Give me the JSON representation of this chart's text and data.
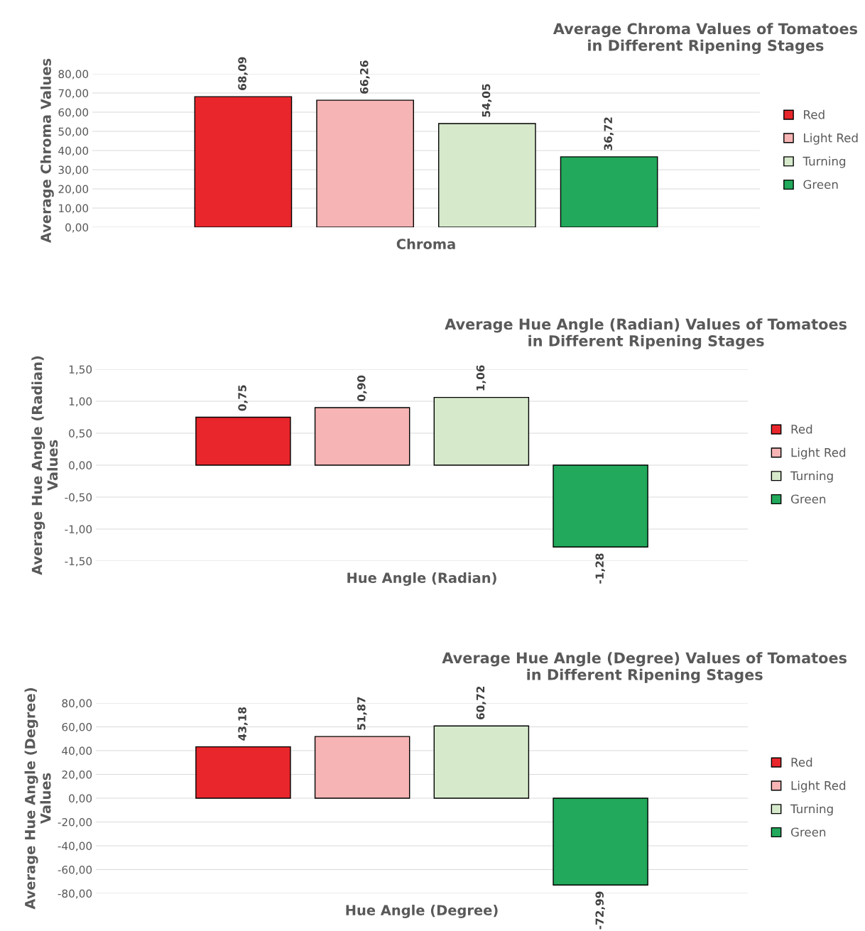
{
  "chart_data": [
    {
      "type": "bar",
      "title": "Average Chroma Values of Tomatoes\nin Different Ripening Stages",
      "xlabel": "Chroma",
      "ylabel": "Average Chroma Values",
      "categories": [
        null
      ],
      "ylim": [
        0,
        80
      ],
      "yticks": [
        {
          "value": 0,
          "label": "0,00"
        },
        {
          "value": 10,
          "label": "10,00"
        },
        {
          "value": 20,
          "label": "20,00"
        },
        {
          "value": 30,
          "label": "30,00"
        },
        {
          "value": 40,
          "label": "40,00"
        },
        {
          "value": 50,
          "label": "50,00"
        },
        {
          "value": 60,
          "label": "60,00"
        },
        {
          "value": 70,
          "label": "70,00"
        },
        {
          "value": 80,
          "label": "80,00"
        }
      ],
      "grid": "y",
      "legend": "right",
      "series": [
        {
          "name": "Red",
          "color": "#e8262b",
          "values": [
            68.09
          ],
          "value_labels": [
            "68,09"
          ]
        },
        {
          "name": "Light Red",
          "color": "#f7b4b4",
          "values": [
            66.26
          ],
          "value_labels": [
            "66,26"
          ]
        },
        {
          "name": "Turning",
          "color": "#d6eacb",
          "values": [
            54.05
          ],
          "value_labels": [
            "54,05"
          ]
        },
        {
          "name": "Green",
          "color": "#22a95b",
          "values": [
            36.72
          ],
          "value_labels": [
            "36,72"
          ]
        }
      ]
    },
    {
      "type": "bar",
      "title": "Average Hue Angle (Radian) Values of Tomatoes\nin Different Ripening Stages",
      "xlabel": "Hue Angle (Radian)",
      "ylabel": "Average Hue Angle (Radian)\nValues",
      "categories": [
        null
      ],
      "ylim": [
        -1.5,
        1.5
      ],
      "yticks": [
        {
          "value": -1.5,
          "label": "-1,50"
        },
        {
          "value": -1.0,
          "label": "-1,00"
        },
        {
          "value": -0.5,
          "label": "-0,50"
        },
        {
          "value": 0,
          "label": "0,00"
        },
        {
          "value": 0.5,
          "label": "0,50"
        },
        {
          "value": 1.0,
          "label": "1,00"
        },
        {
          "value": 1.5,
          "label": "1,50"
        }
      ],
      "grid": "y",
      "legend": "right",
      "series": [
        {
          "name": "Red",
          "color": "#e8262b",
          "values": [
            0.75
          ],
          "value_labels": [
            "0,75"
          ]
        },
        {
          "name": "Light Red",
          "color": "#f7b4b4",
          "values": [
            0.9
          ],
          "value_labels": [
            "0,90"
          ]
        },
        {
          "name": "Turning",
          "color": "#d6eacb",
          "values": [
            1.06
          ],
          "value_labels": [
            "1,06"
          ]
        },
        {
          "name": "Green",
          "color": "#22a95b",
          "values": [
            -1.28
          ],
          "value_labels": [
            "-1,28"
          ]
        }
      ]
    },
    {
      "type": "bar",
      "title": "Average Hue Angle (Degree) Values of Tomatoes\nin Different Ripening Stages",
      "xlabel": "Hue Angle (Degree)",
      "ylabel": "Average Hue Angle (Degree)\nValues",
      "categories": [
        null
      ],
      "ylim": [
        -80,
        80
      ],
      "yticks": [
        {
          "value": -80,
          "label": "-80,00"
        },
        {
          "value": -60,
          "label": "-60,00"
        },
        {
          "value": -40,
          "label": "-40,00"
        },
        {
          "value": -20,
          "label": "-20,00"
        },
        {
          "value": 0,
          "label": "0,00"
        },
        {
          "value": 20,
          "label": "20,00"
        },
        {
          "value": 40,
          "label": "40,00"
        },
        {
          "value": 60,
          "label": "60,00"
        },
        {
          "value": 80,
          "label": "80,00"
        }
      ],
      "grid": "y",
      "legend": "right",
      "series": [
        {
          "name": "Red",
          "color": "#e8262b",
          "values": [
            43.18
          ],
          "value_labels": [
            "43,18"
          ]
        },
        {
          "name": "Light Red",
          "color": "#f7b4b4",
          "values": [
            51.87
          ],
          "value_labels": [
            "51,87"
          ]
        },
        {
          "name": "Turning",
          "color": "#d6eacb",
          "values": [
            60.72
          ],
          "value_labels": [
            "60,72"
          ]
        },
        {
          "name": "Green",
          "color": "#22a95b",
          "values": [
            -72.99
          ],
          "value_labels": [
            "-72,99"
          ]
        }
      ]
    }
  ]
}
